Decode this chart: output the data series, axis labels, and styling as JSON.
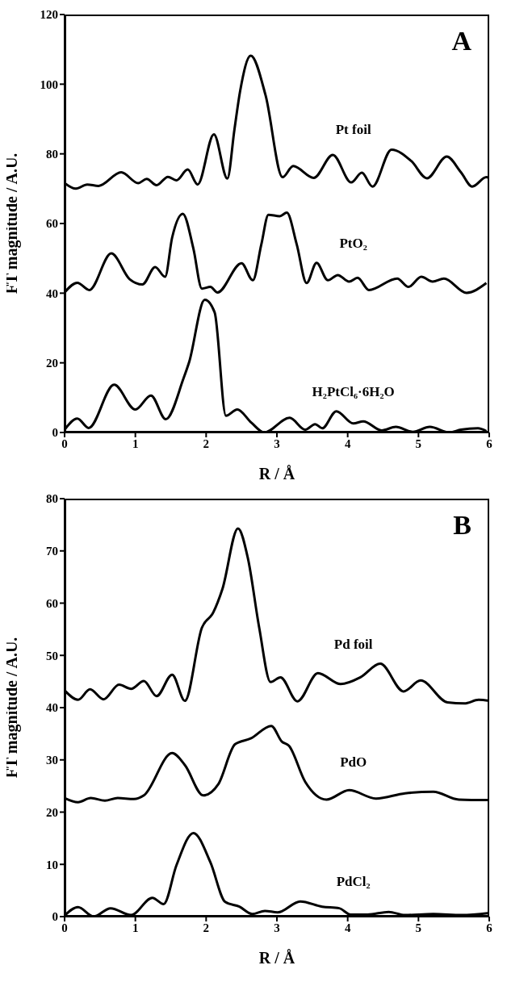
{
  "chart_data": [
    {
      "type": "line",
      "title": "A",
      "xlabel": "R / Å",
      "ylabel": "FT magnitude / A.U.",
      "xlim": [
        0,
        6
      ],
      "xticks": [
        0,
        1,
        2,
        3,
        4,
        5,
        6
      ],
      "ylim": [
        0,
        120
      ],
      "yticks": [
        0,
        20,
        40,
        60,
        80,
        100,
        120
      ],
      "line_style": "solid",
      "series": [
        {
          "name": "Pt foil",
          "color": "#000000",
          "x": [
            0,
            0.16,
            0.32,
            0.48,
            0.8,
            1.04,
            1.16,
            1.3,
            1.46,
            1.58,
            1.74,
            1.88,
            2.11,
            2.3,
            2.4,
            2.48,
            2.63,
            2.84,
            3.08,
            3.23,
            3.52,
            3.79,
            4.05,
            4.2,
            4.35,
            4.62,
            4.9,
            5.12,
            5.4,
            5.6,
            5.76,
            5.96,
            6
          ],
          "values": [
            71.6,
            70,
            71.2,
            70.8,
            74.7,
            71.6,
            72.8,
            71,
            73.4,
            72.4,
            75.5,
            71.2,
            85.6,
            72.9,
            87,
            98,
            108.2,
            96.8,
            73.3,
            76.5,
            73.1,
            79.7,
            71.8,
            74.6,
            70.6,
            81.2,
            77.9,
            73,
            79.2,
            74.7,
            70.6,
            73.3,
            73
          ]
        },
        {
          "name": "PtO₂",
          "color": "#000000",
          "x": [
            0,
            0.18,
            0.35,
            0.66,
            0.92,
            1.1,
            1.28,
            1.42,
            1.52,
            1.67,
            1.82,
            1.94,
            2.06,
            2.16,
            2.5,
            2.66,
            2.78,
            2.88,
            3.04,
            3.14,
            3.28,
            3.42,
            3.56,
            3.72,
            3.86,
            4.02,
            4.14,
            4.3,
            4.7,
            4.86,
            5.04,
            5.2,
            5.36,
            5.68,
            5.96
          ],
          "values": [
            40.2,
            43,
            40.9,
            51.4,
            44,
            42.5,
            47.5,
            44.7,
            56,
            62.8,
            52.8,
            41.3,
            41.8,
            40.2,
            48.6,
            43.7,
            54,
            62.5,
            62.1,
            63.1,
            54,
            42.9,
            48.7,
            43.7,
            45.2,
            43.3,
            44.4,
            40.9,
            44.2,
            41.8,
            44.7,
            43.3,
            44.2,
            40.1,
            42.9
          ]
        },
        {
          "name": "H₂PtCl₆·6H₂O",
          "color": "#000000",
          "x": [
            0,
            0.18,
            0.34,
            0.7,
            1,
            1.22,
            1.43,
            1.68,
            1.76,
            1.98,
            2.12,
            2.28,
            2.44,
            2.64,
            2.82,
            3.18,
            3.4,
            3.54,
            3.64,
            3.84,
            4.08,
            4.22,
            4.48,
            4.68,
            4.92,
            5.16,
            5.44,
            5.6,
            5.84,
            5.96
          ],
          "values": [
            0.8,
            4,
            1.3,
            13.7,
            6.6,
            10.6,
            3.8,
            15.5,
            20.2,
            38.1,
            34.5,
            4.8,
            6.6,
            2.8,
            0,
            4.2,
            0.8,
            2.4,
            1.2,
            6.1,
            2.6,
            3.2,
            0.6,
            1.6,
            0.2,
            1.6,
            0,
            0.8,
            1.2,
            0.4
          ]
        }
      ]
    },
    {
      "type": "line",
      "title": "B",
      "xlabel": "R / Å",
      "ylabel": "FT magnitude / A.U.",
      "xlim": [
        0,
        6
      ],
      "xticks": [
        0,
        1,
        2,
        3,
        4,
        5,
        6
      ],
      "ylim": [
        0,
        80
      ],
      "yticks": [
        0,
        10,
        20,
        30,
        40,
        50,
        60,
        70,
        80
      ],
      "line_style": "solid",
      "series": [
        {
          "name": "Pd foil",
          "color": "#000000",
          "x": [
            0,
            0.19,
            0.36,
            0.55,
            0.77,
            0.94,
            1.12,
            1.3,
            1.52,
            1.7,
            1.94,
            2.1,
            2.23,
            2.45,
            2.59,
            2.75,
            2.91,
            3.05,
            3.29,
            3.58,
            3.9,
            4.18,
            4.46,
            4.79,
            5.03,
            5.41,
            5.65,
            5.85,
            6
          ],
          "values": [
            43.3,
            41.5,
            43.5,
            41.6,
            44.4,
            43.6,
            45.1,
            42.2,
            46.3,
            41.3,
            55.3,
            58.2,
            62.7,
            74.3,
            68.6,
            55.3,
            44.9,
            45.8,
            41.2,
            46.6,
            44.5,
            45.8,
            48.4,
            43.1,
            45.2,
            41,
            40.8,
            41.5,
            41.3
          ]
        },
        {
          "name": "PdO",
          "color": "#000000",
          "x": [
            0,
            0.19,
            0.37,
            0.57,
            0.75,
            0.98,
            1.12,
            1.52,
            1.7,
            1.96,
            2.17,
            2.41,
            2.63,
            2.92,
            3.07,
            3.17,
            3.4,
            3.7,
            4.02,
            4.4,
            4.81,
            5.21,
            5.57,
            6
          ],
          "values": [
            22.7,
            21.9,
            22.7,
            22.2,
            22.7,
            22.5,
            23.2,
            31.3,
            29,
            23.2,
            25.3,
            33,
            34.1,
            36.5,
            33.5,
            32.7,
            25.8,
            22.4,
            24.2,
            22.6,
            23.6,
            23.9,
            22.4,
            22.3
          ]
        },
        {
          "name": "PdCl₂",
          "color": "#000000",
          "x": [
            0,
            0.19,
            0.41,
            0.65,
            0.94,
            1.24,
            1.4,
            1.58,
            1.82,
            2.06,
            2.27,
            2.47,
            2.65,
            2.83,
            3.01,
            3.33,
            3.64,
            3.88,
            4.04,
            4.28,
            4.58,
            4.81,
            5.21,
            5.61,
            6
          ],
          "values": [
            0.2,
            1.8,
            0,
            1.6,
            0.3,
            3.6,
            2.4,
            9.8,
            16,
            10.4,
            2.8,
            1.9,
            0.5,
            1.1,
            0.8,
            2.9,
            1.9,
            1.6,
            0.4,
            0.4,
            0.9,
            0.3,
            0.5,
            0.3,
            0.7
          ]
        }
      ]
    }
  ]
}
